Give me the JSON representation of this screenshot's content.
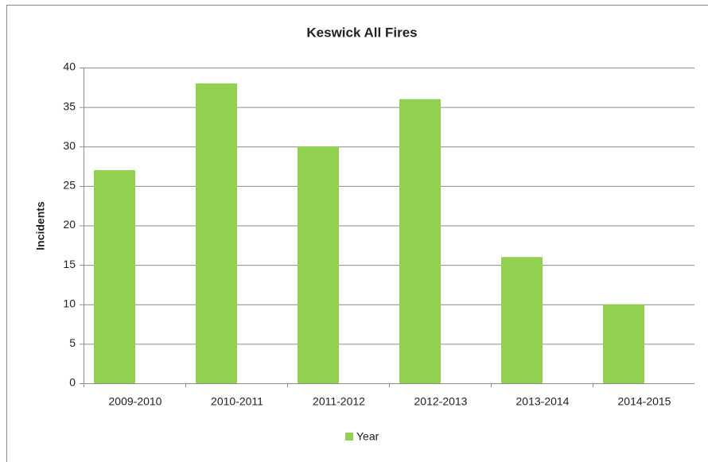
{
  "chart_data": {
    "type": "bar",
    "title": "Keswick All Fires",
    "y_label": "Incidents",
    "categories": [
      "2009-2010",
      "2010-2011",
      "2011-2012",
      "2012-2013",
      "2013-2014",
      "2014-2015"
    ],
    "series": [
      {
        "name": "Year",
        "color": "#92d050",
        "values": [
          27,
          38,
          30,
          36,
          16,
          10
        ]
      }
    ],
    "ylim": [
      0,
      40
    ],
    "yticks": [
      0,
      5,
      10,
      15,
      20,
      25,
      30,
      35,
      40
    ],
    "grid": true,
    "legend": "bottom"
  }
}
